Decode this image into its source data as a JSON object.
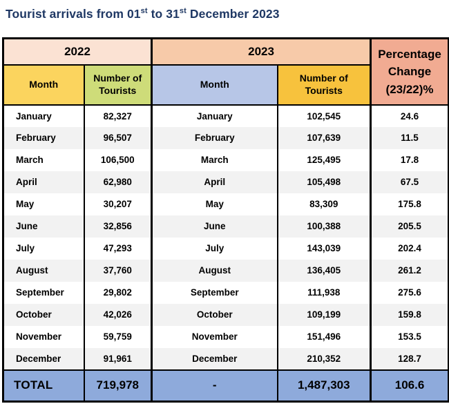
{
  "title": {
    "part1": "Tourist arrivals from 01",
    "sup1": "st",
    "part2": " to 31",
    "sup2": "st",
    "part3": " December 2023"
  },
  "colors": {
    "title_text": "#1F3864",
    "year_2022_header": "#FBE2D3",
    "year_2023_header": "#F7CAA9",
    "pct_change_header": "#F1AB92",
    "month_2022_header": "#FBD45E",
    "tourists_2022_header": "#CEDC79",
    "month_2023_header": "#B7C6E7",
    "tourists_2023_header": "#F7C23D",
    "total_row": "#8EAADB",
    "row_stripe": "#F2F2F2",
    "border": "#000000"
  },
  "table": {
    "year_2022": "2022",
    "year_2023": "2023",
    "pct_header": [
      "Percentage",
      "Change",
      "(23/22)%"
    ],
    "subheaders": {
      "month_2022": "Month",
      "tourists_2022": "Number of Tourists",
      "month_2023": "Month",
      "tourists_2023": "Number of Tourists"
    },
    "rows": [
      {
        "month_2022": "January",
        "tourists_2022": "82,327",
        "month_2023": "January",
        "tourists_2023": "102,545",
        "pct": "24.6"
      },
      {
        "month_2022": "February",
        "tourists_2022": "96,507",
        "month_2023": "February",
        "tourists_2023": "107,639",
        "pct": "11.5"
      },
      {
        "month_2022": "March",
        "tourists_2022": "106,500",
        "month_2023": "March",
        "tourists_2023": "125,495",
        "pct": "17.8"
      },
      {
        "month_2022": "April",
        "tourists_2022": "62,980",
        "month_2023": "April",
        "tourists_2023": "105,498",
        "pct": "67.5"
      },
      {
        "month_2022": "May",
        "tourists_2022": "30,207",
        "month_2023": "May",
        "tourists_2023": "83,309",
        "pct": "175.8"
      },
      {
        "month_2022": "June",
        "tourists_2022": "32,856",
        "month_2023": "June",
        "tourists_2023": "100,388",
        "pct": "205.5"
      },
      {
        "month_2022": "July",
        "tourists_2022": "47,293",
        "month_2023": "July",
        "tourists_2023": "143,039",
        "pct": "202.4"
      },
      {
        "month_2022": "August",
        "tourists_2022": "37,760",
        "month_2023": "August",
        "tourists_2023": "136,405",
        "pct": "261.2"
      },
      {
        "month_2022": "September",
        "tourists_2022": "29,802",
        "month_2023": "September",
        "tourists_2023": "111,938",
        "pct": "275.6"
      },
      {
        "month_2022": "October",
        "tourists_2022": "42,026",
        "month_2023": "October",
        "tourists_2023": "109,199",
        "pct": "159.8"
      },
      {
        "month_2022": "November",
        "tourists_2022": "59,759",
        "month_2023": "November",
        "tourists_2023": "151,496",
        "pct": "153.5"
      },
      {
        "month_2022": "December",
        "tourists_2022": "91,961",
        "month_2023": "December",
        "tourists_2023": "210,352",
        "pct": "128.7"
      }
    ],
    "total": {
      "label": "TOTAL",
      "tourists_2022": "719,978",
      "month_2023": "-",
      "tourists_2023": "1,487,303",
      "pct": "106.6"
    }
  },
  "chart_data": {
    "type": "table",
    "title": "Tourist arrivals from 01st to 31st December 2023",
    "columns": [
      "Month (2022)",
      "Number of Tourists (2022)",
      "Month (2023)",
      "Number of Tourists (2023)",
      "Percentage Change (23/22)%"
    ],
    "months": [
      "January",
      "February",
      "March",
      "April",
      "May",
      "June",
      "July",
      "August",
      "September",
      "October",
      "November",
      "December"
    ],
    "tourists_2022": [
      82327,
      96507,
      106500,
      62980,
      30207,
      32856,
      47293,
      37760,
      29802,
      42026,
      59759,
      91961
    ],
    "tourists_2023": [
      102545,
      107639,
      125495,
      105498,
      83309,
      100388,
      143039,
      136405,
      111938,
      109199,
      151496,
      210352
    ],
    "pct_change": [
      24.6,
      11.5,
      17.8,
      67.5,
      175.8,
      205.5,
      202.4,
      261.2,
      275.6,
      159.8,
      153.5,
      128.7
    ],
    "total_2022": 719978,
    "total_2023": 1487303,
    "total_pct_change": 106.6
  }
}
